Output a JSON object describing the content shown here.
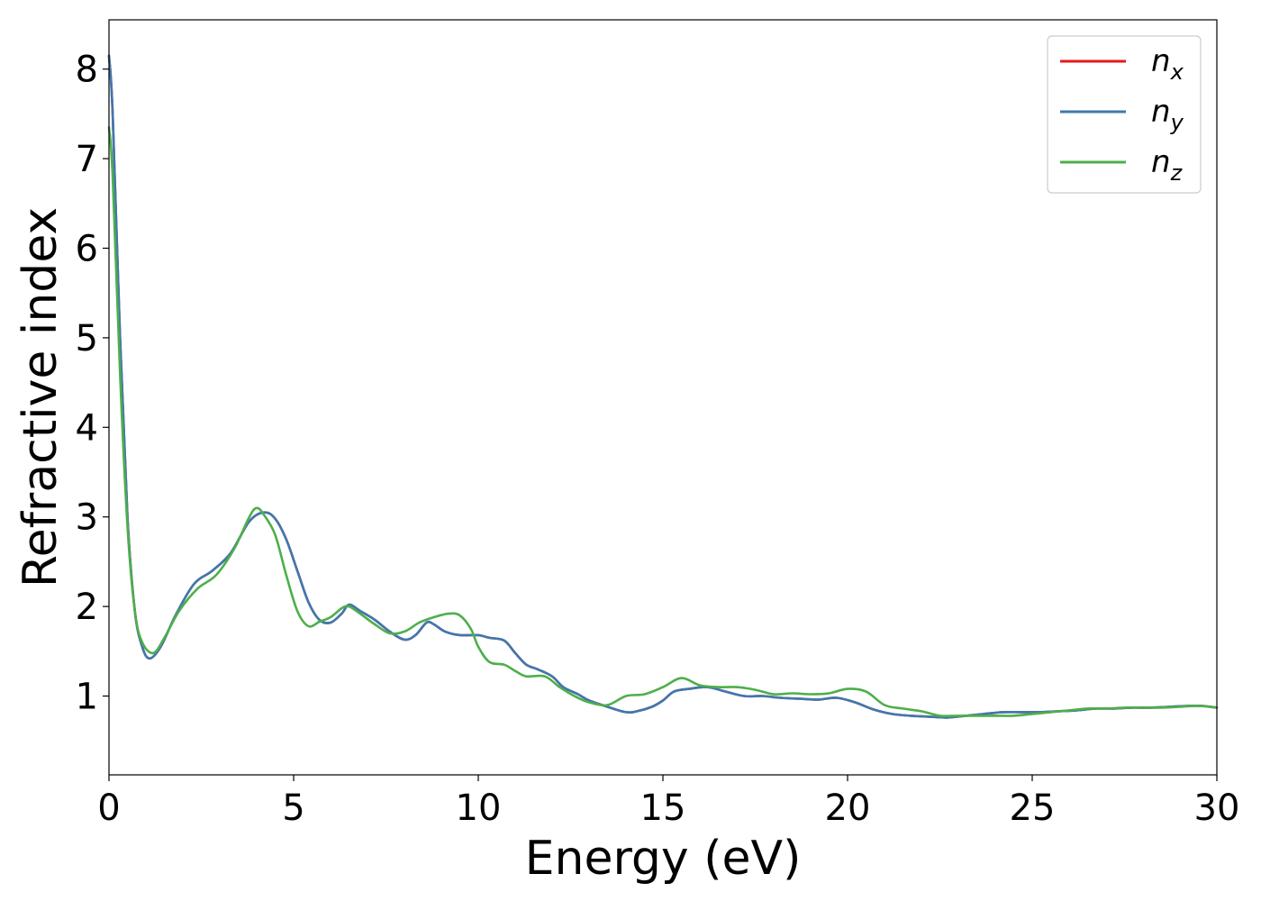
{
  "chart_data": {
    "type": "line",
    "xlabel": "Energy (eV)",
    "ylabel": "Refractive index",
    "xlim": [
      0,
      30
    ],
    "ylim": [
      0.12,
      8.55
    ],
    "xticks": [
      0,
      5,
      10,
      15,
      20,
      25,
      30
    ],
    "yticks": [
      1,
      2,
      3,
      4,
      5,
      6,
      7,
      8
    ],
    "grid": false,
    "legend_position": "top-right",
    "series": [
      {
        "name": "n_x",
        "label_base": "n",
        "label_sub": "x",
        "color": "#e41a1c",
        "x": [
          0,
          0.1,
          0.3,
          0.5,
          0.7,
          0.9,
          1.1,
          1.4,
          1.8,
          2.3,
          2.8,
          3.3,
          3.8,
          4.2,
          4.5,
          4.8,
          5.1,
          5.4,
          5.7,
          6.0,
          6.3,
          6.5,
          6.8,
          7.2,
          7.6,
          8.0,
          8.3,
          8.6,
          8.8,
          9.1,
          9.5,
          10.0,
          10.3,
          10.7,
          11.0,
          11.3,
          11.6,
          12.0,
          12.3,
          12.7,
          13.0,
          13.5,
          14.0,
          14.3,
          14.7,
          15.0,
          15.3,
          15.7,
          16.2,
          16.7,
          17.2,
          17.7,
          18.2,
          18.7,
          19.2,
          19.7,
          20.2,
          20.7,
          21.2,
          21.7,
          22.2,
          22.7,
          23.2,
          23.7,
          24.2,
          24.7,
          25.2,
          25.7,
          26.2,
          26.7,
          27.2,
          27.7,
          28.2,
          28.7,
          29.2,
          29.6,
          30.0
        ],
        "y": [
          8.15,
          7.5,
          5.0,
          3.0,
          1.95,
          1.55,
          1.42,
          1.55,
          1.9,
          2.25,
          2.4,
          2.6,
          2.95,
          3.05,
          2.98,
          2.75,
          2.4,
          2.05,
          1.85,
          1.82,
          1.92,
          2.02,
          1.95,
          1.85,
          1.72,
          1.63,
          1.68,
          1.82,
          1.8,
          1.72,
          1.68,
          1.68,
          1.65,
          1.62,
          1.48,
          1.35,
          1.3,
          1.22,
          1.1,
          1.02,
          0.95,
          0.88,
          0.82,
          0.83,
          0.88,
          0.95,
          1.05,
          1.08,
          1.1,
          1.05,
          1.0,
          1.0,
          0.98,
          0.97,
          0.96,
          0.98,
          0.93,
          0.85,
          0.8,
          0.78,
          0.77,
          0.76,
          0.78,
          0.8,
          0.82,
          0.82,
          0.82,
          0.83,
          0.84,
          0.86,
          0.86,
          0.87,
          0.87,
          0.88,
          0.89,
          0.89,
          0.87
        ]
      },
      {
        "name": "n_y",
        "label_base": "n",
        "label_sub": "y",
        "color": "#3d79b0",
        "x": [
          0,
          0.1,
          0.3,
          0.5,
          0.7,
          0.9,
          1.1,
          1.4,
          1.8,
          2.3,
          2.8,
          3.3,
          3.8,
          4.2,
          4.5,
          4.8,
          5.1,
          5.4,
          5.7,
          6.0,
          6.3,
          6.5,
          6.8,
          7.2,
          7.6,
          8.0,
          8.3,
          8.6,
          8.8,
          9.1,
          9.5,
          10.0,
          10.3,
          10.7,
          11.0,
          11.3,
          11.6,
          12.0,
          12.3,
          12.7,
          13.0,
          13.5,
          14.0,
          14.3,
          14.7,
          15.0,
          15.3,
          15.7,
          16.2,
          16.7,
          17.2,
          17.7,
          18.2,
          18.7,
          19.2,
          19.7,
          20.2,
          20.7,
          21.2,
          21.7,
          22.2,
          22.7,
          23.2,
          23.7,
          24.2,
          24.7,
          25.2,
          25.7,
          26.2,
          26.7,
          27.2,
          27.7,
          28.2,
          28.7,
          29.2,
          29.6,
          30.0
        ],
        "y": [
          8.15,
          7.5,
          5.0,
          3.0,
          1.95,
          1.55,
          1.42,
          1.55,
          1.9,
          2.25,
          2.4,
          2.6,
          2.95,
          3.05,
          2.98,
          2.75,
          2.4,
          2.05,
          1.85,
          1.82,
          1.92,
          2.02,
          1.95,
          1.85,
          1.72,
          1.63,
          1.68,
          1.82,
          1.8,
          1.72,
          1.68,
          1.68,
          1.65,
          1.62,
          1.48,
          1.35,
          1.3,
          1.22,
          1.1,
          1.02,
          0.95,
          0.88,
          0.82,
          0.83,
          0.88,
          0.95,
          1.05,
          1.08,
          1.1,
          1.05,
          1.0,
          1.0,
          0.98,
          0.97,
          0.96,
          0.98,
          0.93,
          0.85,
          0.8,
          0.78,
          0.77,
          0.76,
          0.78,
          0.8,
          0.82,
          0.82,
          0.82,
          0.83,
          0.84,
          0.86,
          0.86,
          0.87,
          0.87,
          0.88,
          0.89,
          0.89,
          0.87
        ]
      },
      {
        "name": "n_z",
        "label_base": "n",
        "label_sub": "z",
        "color": "#4daf4a",
        "x": [
          0,
          0.1,
          0.3,
          0.5,
          0.7,
          0.9,
          1.2,
          1.5,
          1.9,
          2.4,
          2.9,
          3.4,
          3.8,
          4.0,
          4.2,
          4.5,
          4.8,
          5.1,
          5.4,
          5.7,
          6.0,
          6.3,
          6.5,
          6.8,
          7.2,
          7.6,
          8.0,
          8.4,
          8.8,
          9.2,
          9.5,
          9.8,
          10.0,
          10.3,
          10.7,
          11.0,
          11.3,
          11.8,
          12.2,
          12.6,
          13.0,
          13.5,
          14.0,
          14.5,
          15.0,
          15.5,
          16.0,
          16.5,
          17.0,
          17.5,
          18.0,
          18.5,
          19.0,
          19.5,
          20.0,
          20.5,
          21.0,
          21.5,
          22.0,
          22.5,
          23.0,
          23.5,
          24.0,
          24.5,
          25.0,
          25.5,
          26.0,
          26.5,
          27.0,
          27.5,
          28.0,
          28.5,
          29.0,
          29.5,
          30.0
        ],
        "y": [
          7.35,
          6.8,
          4.6,
          2.9,
          1.95,
          1.6,
          1.48,
          1.65,
          1.95,
          2.2,
          2.35,
          2.65,
          3.0,
          3.1,
          3.02,
          2.8,
          2.35,
          1.95,
          1.78,
          1.83,
          1.88,
          1.98,
          2.0,
          1.92,
          1.8,
          1.7,
          1.72,
          1.82,
          1.88,
          1.92,
          1.9,
          1.75,
          1.55,
          1.38,
          1.35,
          1.28,
          1.22,
          1.22,
          1.1,
          1.0,
          0.93,
          0.9,
          1.0,
          1.02,
          1.1,
          1.2,
          1.12,
          1.1,
          1.1,
          1.07,
          1.02,
          1.03,
          1.02,
          1.03,
          1.08,
          1.05,
          0.9,
          0.86,
          0.83,
          0.78,
          0.78,
          0.78,
          0.78,
          0.78,
          0.8,
          0.82,
          0.84,
          0.86,
          0.86,
          0.87,
          0.87,
          0.87,
          0.88,
          0.89,
          0.87
        ]
      }
    ]
  }
}
